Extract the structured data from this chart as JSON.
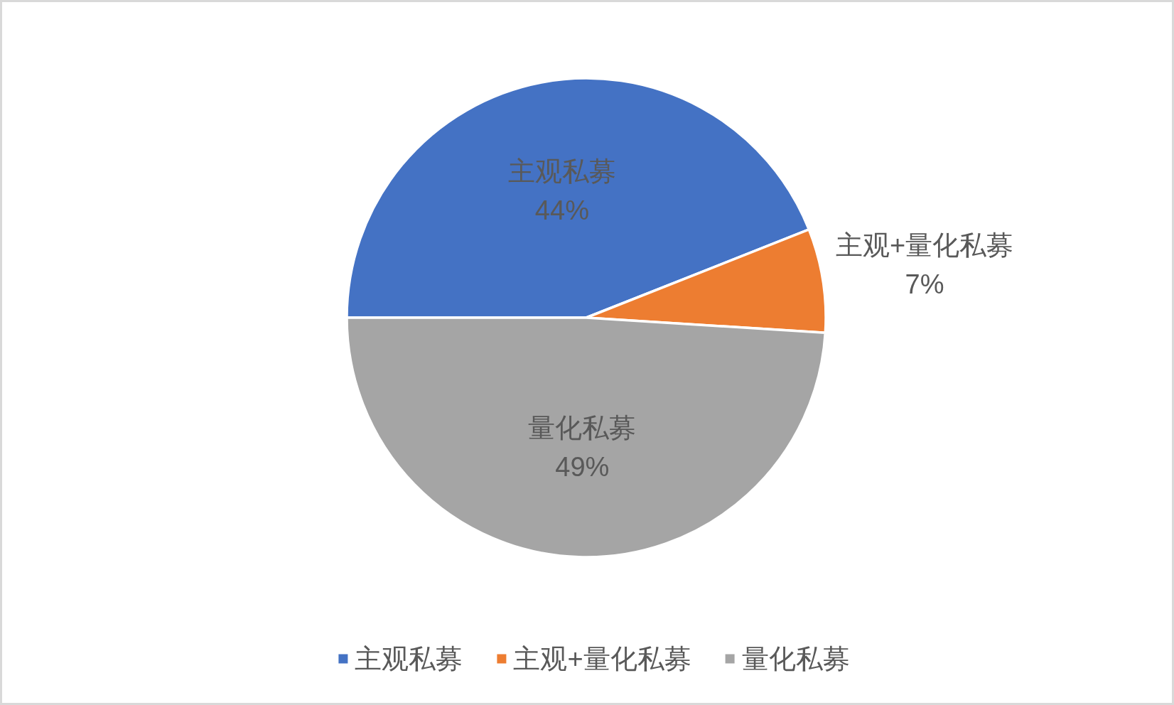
{
  "chart_data": {
    "type": "pie",
    "categories": [
      "主观私募",
      "主观+量化私募",
      "量化私募"
    ],
    "values": [
      44,
      7,
      49
    ],
    "colors": [
      "#4472c4",
      "#ed7d31",
      "#a5a5a5"
    ],
    "value_labels": [
      "44%",
      "7%",
      "49%"
    ],
    "legend": "bottom"
  }
}
